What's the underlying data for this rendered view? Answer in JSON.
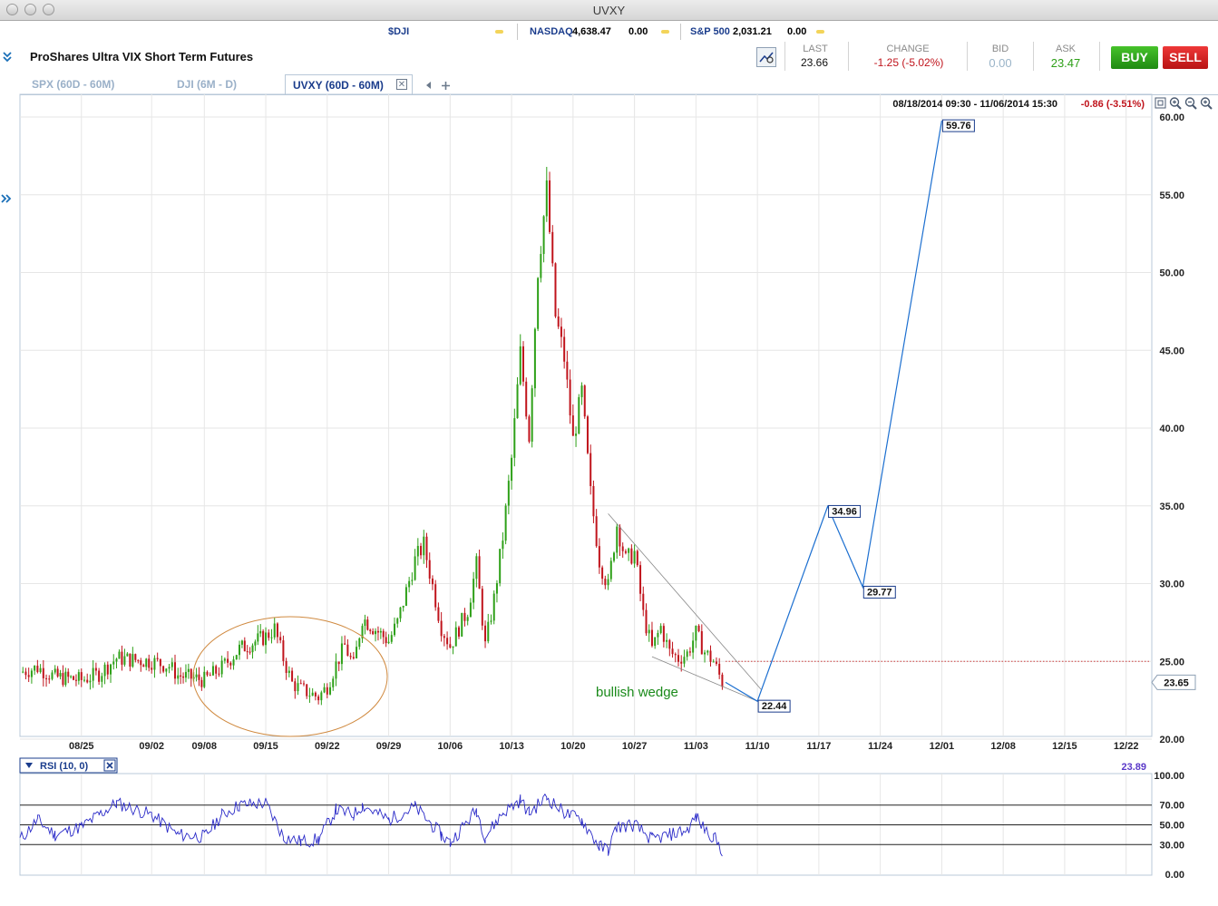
{
  "window": {
    "title": "UVXY"
  },
  "ticker_bar": [
    {
      "symbol": "$DJI",
      "value": "",
      "change": ""
    },
    {
      "symbol": "NASDAQ",
      "value": "4,638.47",
      "change": "0.00"
    },
    {
      "symbol": "S&P 500",
      "value": "2,031.21",
      "change": "0.00"
    }
  ],
  "security": {
    "name": "ProShares Ultra VIX Short Term Futures"
  },
  "quote": {
    "last_label": "LAST",
    "last": "23.66",
    "change_label": "CHANGE",
    "change": "-1.25 (-5.02%)",
    "bid_label": "BID",
    "bid": "0.00",
    "ask_label": "ASK",
    "ask": "23.47",
    "buy": "BUY",
    "sell": "SELL"
  },
  "colors": {
    "up": "#2ea018",
    "down": "#c0141c",
    "accent": "#1a3c8c",
    "projection": "#1c6fd0",
    "annotation": "#1a8a1a",
    "circle": "#d08a40"
  },
  "tabs": [
    {
      "label": "SPX (60D - 60M)",
      "active": false
    },
    {
      "label": "DJI (6M - D)",
      "active": false
    },
    {
      "label": "UVXY (60D - 60M)",
      "active": true
    }
  ],
  "chart_data": {
    "type": "candlestick",
    "range_label": "08/18/2014 09:30 - 11/06/2014 15:30",
    "range_change": "-0.86 (-3.51%)",
    "x_ticks": [
      "08/25",
      "09/02",
      "09/08",
      "09/15",
      "09/22",
      "09/29",
      "10/06",
      "10/13",
      "10/20",
      "10/27",
      "11/03",
      "11/10",
      "11/17",
      "11/24",
      "12/01",
      "12/08",
      "12/15",
      "12/22"
    ],
    "y_ticks": [
      "20.00",
      "25.00",
      "30.00",
      "35.00",
      "40.00",
      "45.00",
      "50.00",
      "55.00",
      "60.00"
    ],
    "ylim": [
      20,
      60
    ],
    "last_price": "23.65",
    "price_path": [
      {
        "d": "08/18",
        "v": 24.3
      },
      {
        "d": "08/20",
        "v": 24.6
      },
      {
        "d": "08/22",
        "v": 24.0
      },
      {
        "d": "08/25",
        "v": 23.8
      },
      {
        "d": "08/27",
        "v": 24.2
      },
      {
        "d": "08/29",
        "v": 25.2
      },
      {
        "d": "09/02",
        "v": 25.0
      },
      {
        "d": "09/04",
        "v": 24.7
      },
      {
        "d": "09/05",
        "v": 24.1
      },
      {
        "d": "09/08",
        "v": 23.8
      },
      {
        "d": "09/10",
        "v": 24.6
      },
      {
        "d": "09/12",
        "v": 25.8
      },
      {
        "d": "09/15",
        "v": 26.6
      },
      {
        "d": "09/16",
        "v": 27.1
      },
      {
        "d": "09/17",
        "v": 25.2
      },
      {
        "d": "09/18",
        "v": 23.6
      },
      {
        "d": "09/19",
        "v": 23.2
      },
      {
        "d": "09/21",
        "v": 22.7
      },
      {
        "d": "09/22",
        "v": 23.4
      },
      {
        "d": "09/23",
        "v": 24.8
      },
      {
        "d": "09/24",
        "v": 26.0
      },
      {
        "d": "09/25",
        "v": 24.7
      },
      {
        "d": "09/26",
        "v": 27.8
      },
      {
        "d": "09/29",
        "v": 26.3
      },
      {
        "d": "09/30",
        "v": 27.5
      },
      {
        "d": "10/01",
        "v": 29.5
      },
      {
        "d": "10/02",
        "v": 31.5
      },
      {
        "d": "10/03",
        "v": 32.5
      },
      {
        "d": "10/05",
        "v": 27.2
      },
      {
        "d": "10/06",
        "v": 26.0
      },
      {
        "d": "10/08",
        "v": 28.3
      },
      {
        "d": "10/09",
        "v": 31.2
      },
      {
        "d": "10/10",
        "v": 26.0
      },
      {
        "d": "10/11",
        "v": 29.0
      },
      {
        "d": "10/12",
        "v": 33.0
      },
      {
        "d": "10/13",
        "v": 38.0
      },
      {
        "d": "10/14",
        "v": 44.8
      },
      {
        "d": "10/15",
        "v": 39.5
      },
      {
        "d": "10/16",
        "v": 50.2
      },
      {
        "d": "10/17",
        "v": 55.3
      },
      {
        "d": "10/18",
        "v": 47.2
      },
      {
        "d": "10/19",
        "v": 44.5
      },
      {
        "d": "10/20",
        "v": 39.2
      },
      {
        "d": "10/21",
        "v": 42.3
      },
      {
        "d": "10/22",
        "v": 35.8
      },
      {
        "d": "10/23",
        "v": 31.5
      },
      {
        "d": "10/24",
        "v": 29.8
      },
      {
        "d": "10/25",
        "v": 33.8
      },
      {
        "d": "10/26",
        "v": 31.5
      },
      {
        "d": "10/27",
        "v": 32.0
      },
      {
        "d": "10/28",
        "v": 28.0
      },
      {
        "d": "10/29",
        "v": 25.8
      },
      {
        "d": "10/30",
        "v": 27.2
      },
      {
        "d": "10/31",
        "v": 25.6
      },
      {
        "d": "11/01",
        "v": 25.2
      },
      {
        "d": "11/02",
        "v": 25.5
      },
      {
        "d": "11/03",
        "v": 26.8
      },
      {
        "d": "11/04",
        "v": 25.6
      },
      {
        "d": "11/05",
        "v": 25.0
      },
      {
        "d": "11/06",
        "v": 23.65
      }
    ],
    "projection": [
      {
        "d": "11/10",
        "v": 22.44,
        "label": "22.44"
      },
      {
        "d": "11/18",
        "v": 34.96,
        "label": "34.96"
      },
      {
        "d": "11/22",
        "v": 29.77,
        "label": "29.77"
      },
      {
        "d": "12/01",
        "v": 59.76,
        "label": "59.76"
      }
    ],
    "reference_line": 25.0,
    "wedge": {
      "upper": [
        {
          "d": "10/24",
          "v": 34.5
        },
        {
          "d": "11/10",
          "v": 23.2
        }
      ],
      "lower": [
        {
          "d": "10/29",
          "v": 25.3
        },
        {
          "d": "11/10",
          "v": 22.44
        }
      ]
    },
    "annotation": "bullish wedge",
    "rsi": {
      "label": "RSI (10, 0)",
      "value": "23.89",
      "y_ticks": [
        "0.00",
        "30.00",
        "50.00",
        "70.00",
        "100.00"
      ],
      "levels": [
        30,
        50,
        70
      ],
      "path": [
        {
          "d": "08/18",
          "v": 35
        },
        {
          "d": "08/20",
          "v": 55
        },
        {
          "d": "08/22",
          "v": 40
        },
        {
          "d": "08/25",
          "v": 48
        },
        {
          "d": "08/27",
          "v": 60
        },
        {
          "d": "08/29",
          "v": 72
        },
        {
          "d": "09/02",
          "v": 60
        },
        {
          "d": "09/05",
          "v": 40
        },
        {
          "d": "09/08",
          "v": 38
        },
        {
          "d": "09/10",
          "v": 60
        },
        {
          "d": "09/12",
          "v": 70
        },
        {
          "d": "09/15",
          "v": 72
        },
        {
          "d": "09/17",
          "v": 38
        },
        {
          "d": "09/19",
          "v": 33
        },
        {
          "d": "09/21",
          "v": 35
        },
        {
          "d": "09/23",
          "v": 65
        },
        {
          "d": "09/25",
          "v": 60
        },
        {
          "d": "09/26",
          "v": 70
        },
        {
          "d": "09/29",
          "v": 55
        },
        {
          "d": "10/02",
          "v": 68
        },
        {
          "d": "10/05",
          "v": 40
        },
        {
          "d": "10/06",
          "v": 32
        },
        {
          "d": "10/09",
          "v": 65
        },
        {
          "d": "10/10",
          "v": 38
        },
        {
          "d": "10/12",
          "v": 62
        },
        {
          "d": "10/14",
          "v": 75
        },
        {
          "d": "10/15",
          "v": 62
        },
        {
          "d": "10/17",
          "v": 78
        },
        {
          "d": "10/19",
          "v": 62
        },
        {
          "d": "10/21",
          "v": 55
        },
        {
          "d": "10/23",
          "v": 28
        },
        {
          "d": "10/24",
          "v": 25
        },
        {
          "d": "10/25",
          "v": 48
        },
        {
          "d": "10/27",
          "v": 50
        },
        {
          "d": "10/29",
          "v": 35
        },
        {
          "d": "10/31",
          "v": 40
        },
        {
          "d": "11/02",
          "v": 45
        },
        {
          "d": "11/03",
          "v": 58
        },
        {
          "d": "11/04",
          "v": 45
        },
        {
          "d": "11/05",
          "v": 38
        },
        {
          "d": "11/06",
          "v": 24
        }
      ]
    }
  }
}
